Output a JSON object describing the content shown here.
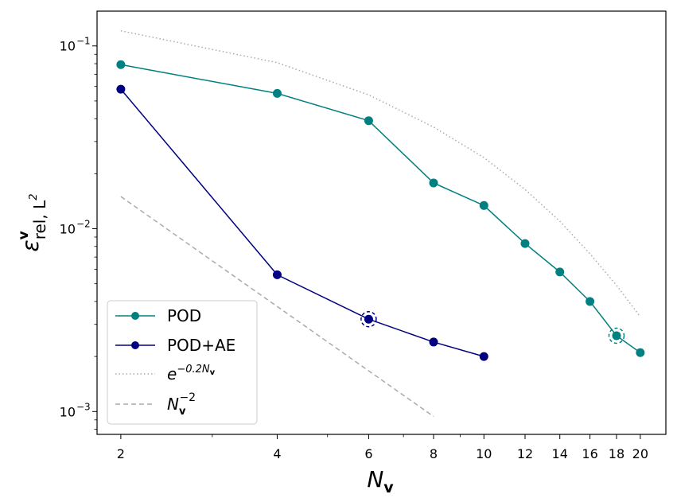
{
  "chart_data": {
    "type": "line",
    "xscale": "log",
    "yscale": "log",
    "xlim": [
      1.8,
      22.4
    ],
    "ylim": [
      0.00075,
      0.155
    ],
    "xticks": [
      2,
      4,
      6,
      8,
      10,
      12,
      14,
      16,
      18,
      20
    ],
    "xtick_labels": [
      "2",
      "4",
      "6",
      "8",
      "10",
      "12",
      "14",
      "16",
      "18",
      "20"
    ],
    "yticks": [
      0.1,
      0.01,
      0.001
    ],
    "ytick_labels": [
      {
        "base": "10",
        "exp": "−1"
      },
      {
        "base": "10",
        "exp": "−2"
      },
      {
        "base": "10",
        "exp": "−3"
      }
    ],
    "xlabel": {
      "main": "N",
      "sub": "v"
    },
    "ylabel": {
      "main": "ε",
      "sup": "v",
      "sub": "rel, L",
      "subsup": "2"
    },
    "grid": false,
    "legend_position": "lower-left",
    "series": [
      {
        "name": "POD",
        "color": "#008080",
        "style": "solid",
        "marker": "circle",
        "x": [
          2,
          4,
          6,
          8,
          10,
          12,
          14,
          16,
          18,
          20
        ],
        "y": [
          0.079,
          0.055,
          0.039,
          0.0178,
          0.0134,
          0.0083,
          0.0058,
          0.004,
          0.0026,
          0.0021
        ],
        "highlight_x": 18
      },
      {
        "name": "POD+AE",
        "color": "#000080",
        "style": "solid",
        "marker": "circle",
        "x": [
          2,
          4,
          6,
          8,
          10
        ],
        "y": [
          0.058,
          0.0056,
          0.0032,
          0.0024,
          0.002
        ],
        "highlight_x": 6
      },
      {
        "name": "e^(−0.2N_v)",
        "color": "#aaaaaa",
        "style": "dotted",
        "marker": "none",
        "x": [
          2,
          4,
          6,
          8,
          10,
          12,
          14,
          16,
          18,
          20
        ],
        "y": [
          0.121,
          0.081,
          0.054,
          0.036,
          0.0245,
          0.0164,
          0.011,
          0.0073,
          0.0049,
          0.0033
        ]
      },
      {
        "name": "N_v^(−2)",
        "color": "#aaaaaa",
        "style": "dashed",
        "marker": "none",
        "x": [
          2,
          8
        ],
        "y": [
          0.015,
          0.00094
        ]
      }
    ],
    "legend_entries": [
      {
        "label": "POD"
      },
      {
        "label": "POD+AE"
      },
      {
        "base": "e",
        "sup": "−0.2N",
        "supsub": "v"
      },
      {
        "base": "N",
        "sub": "v",
        "sup": "−2"
      }
    ]
  }
}
